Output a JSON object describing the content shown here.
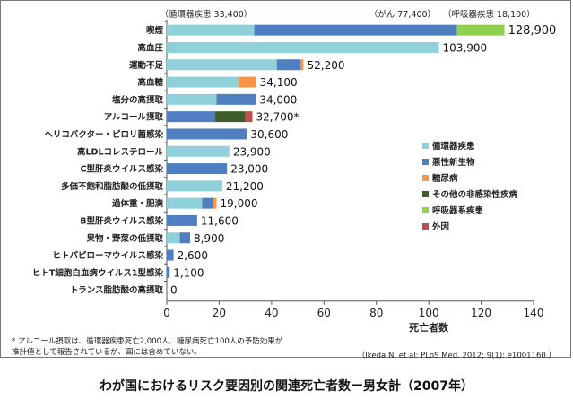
{
  "chart_data": {
    "type": "bar",
    "orientation": "horizontal",
    "stacked": true,
    "xlabel": "死亡者数",
    "xlim": [
      0,
      140
    ],
    "xticks": [
      0,
      20,
      40,
      60,
      80,
      100,
      120,
      140
    ],
    "grid": false,
    "legend_position": "right",
    "series": [
      {
        "name": "循環器疾患",
        "color": "#8fd0db"
      },
      {
        "name": "悪性新生物",
        "color": "#4f7fc1"
      },
      {
        "name": "糖尿病",
        "color": "#f79646"
      },
      {
        "name": "その他の非感染性疾病",
        "color": "#3e5f2c"
      },
      {
        "name": "呼吸器系疾患",
        "color": "#92d050"
      },
      {
        "name": "外因",
        "color": "#c0504d"
      }
    ],
    "categories": [
      {
        "label": "喫煙",
        "total_label": "128,900",
        "segments": [
          33.4,
          77.4,
          0,
          0,
          18.1,
          0
        ]
      },
      {
        "label": "高血圧",
        "total_label": "103,900",
        "segments": [
          103.9,
          0,
          0,
          0,
          0,
          0
        ]
      },
      {
        "label": "運動不足",
        "total_label": "52,200",
        "segments": [
          42.0,
          9.0,
          1.2,
          0,
          0,
          0
        ]
      },
      {
        "label": "高血糖",
        "total_label": "34,100",
        "segments": [
          27.5,
          0,
          6.6,
          0,
          0,
          0
        ]
      },
      {
        "label": "塩分の高摂取",
        "total_label": "34,000",
        "segments": [
          19.0,
          15.0,
          0,
          0,
          0,
          0
        ]
      },
      {
        "label": "アルコール摂取",
        "total_label": "32,700*",
        "segments": [
          0,
          18.5,
          0,
          11.5,
          0,
          2.7
        ]
      },
      {
        "label": "ヘリコバクター・ピロリ菌感染",
        "total_label": "30,600",
        "segments": [
          0,
          30.6,
          0,
          0,
          0,
          0
        ]
      },
      {
        "label": "高LDLコレステロール",
        "total_label": "23,900",
        "segments": [
          23.9,
          0,
          0,
          0,
          0,
          0
        ]
      },
      {
        "label": "C型肝炎ウイルス感染",
        "total_label": "23,000",
        "segments": [
          0,
          23.0,
          0,
          0,
          0,
          0
        ]
      },
      {
        "label": "多価不飽和脂肪酸の低摂取",
        "total_label": "21,200",
        "segments": [
          21.2,
          0,
          0,
          0,
          0,
          0
        ]
      },
      {
        "label": "過体重・肥満",
        "total_label": "19,000",
        "segments": [
          13.5,
          4.0,
          1.5,
          0,
          0,
          0
        ]
      },
      {
        "label": "B型肝炎ウイルス感染",
        "total_label": "11,600",
        "segments": [
          0,
          11.6,
          0,
          0,
          0,
          0
        ]
      },
      {
        "label": "果物・野菜の低摂取",
        "total_label": "8,900",
        "segments": [
          5.0,
          3.9,
          0,
          0,
          0,
          0
        ]
      },
      {
        "label": "ヒトパピローマウイルス感染",
        "total_label": "2,600",
        "segments": [
          0,
          2.6,
          0,
          0,
          0,
          0
        ]
      },
      {
        "label": "ヒトT細胞白血病ウイルス1型感染",
        "total_label": "1,100",
        "segments": [
          0,
          1.1,
          0,
          0,
          0,
          0
        ]
      },
      {
        "label": "トランス脂肪酸の高摂取",
        "total_label": "0",
        "segments": [
          0,
          0,
          0,
          0,
          0,
          0
        ]
      }
    ],
    "annotations": [
      "（循環器疾患 33,400）",
      "（がん 77,400）",
      "（呼吸器疾患 18,100）"
    ]
  },
  "footnote": "* アルコール摂取は、循環器疾患死亡2,000人、糖尿病死亡100人の予防効果が\n  推計値として報告されているが、図には含めていない。",
  "citation": "（Ikeda N, et al: PLoS Med. 2012; 9(1): e1001160.）",
  "caption": "わが国におけるリスク要因別の関連死亡者数ー男女計（2007年）"
}
